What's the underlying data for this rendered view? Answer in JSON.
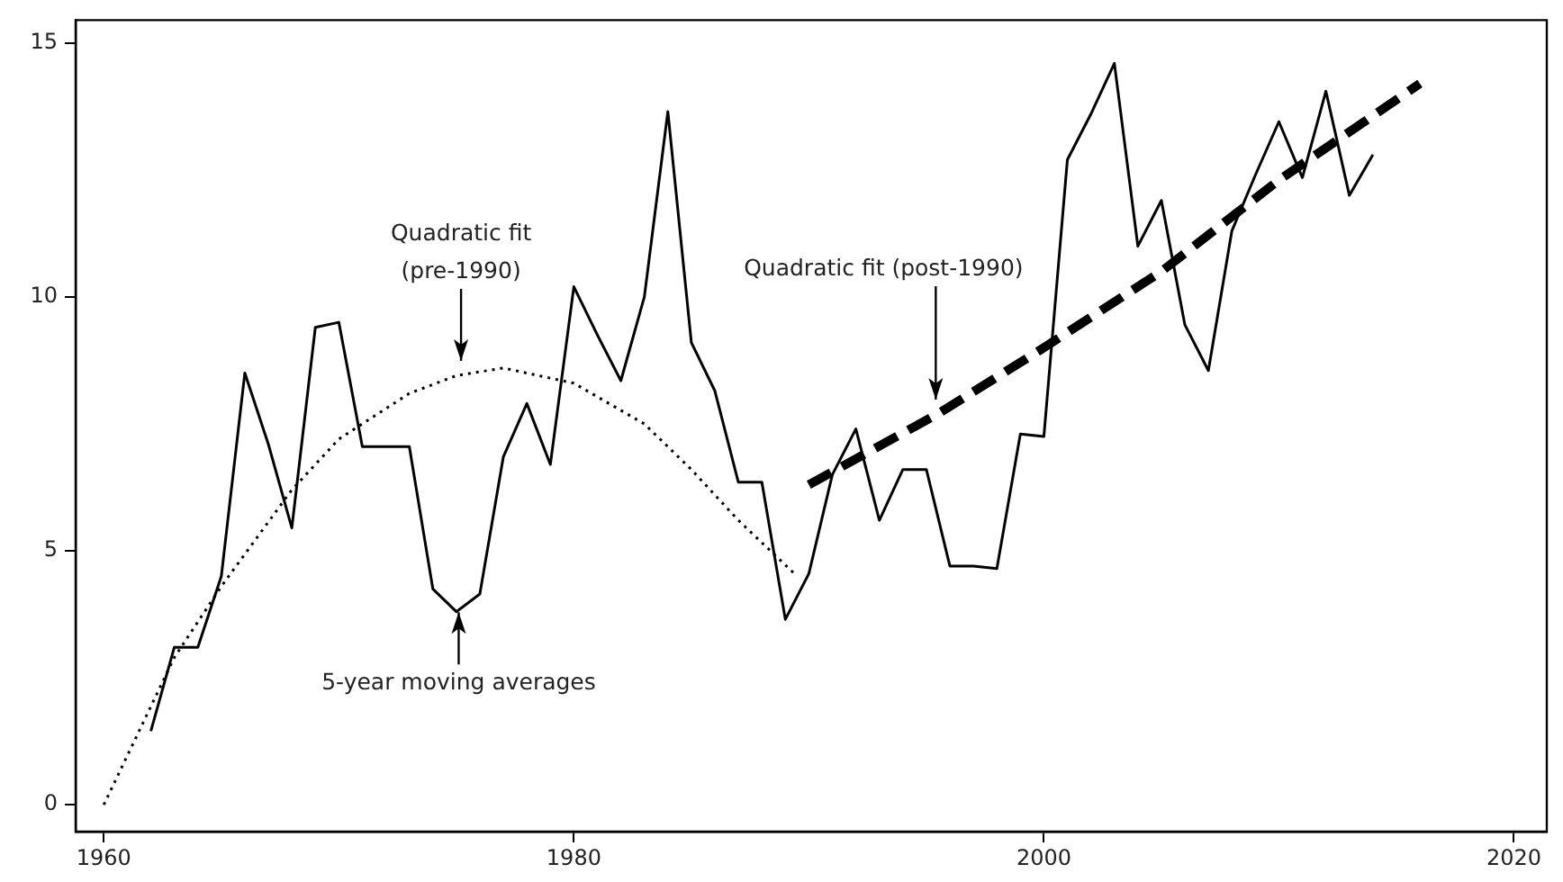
{
  "chart_data": {
    "type": "line",
    "xlim": [
      1958.8,
      2021.4
    ],
    "xticks": [
      1960,
      1980,
      2000,
      2020
    ],
    "ylim": [
      -0.53,
      15.45
    ],
    "yticks": [
      0,
      5,
      10,
      15
    ],
    "grid": false,
    "legend": false,
    "marker": "none",
    "series": [
      {
        "color": "#000000",
        "line_style": "solid",
        "x": [
          1962,
          1963,
          1964,
          1965,
          1966,
          1967,
          1968,
          1969,
          1970,
          1971,
          1972,
          1973,
          1974,
          1975,
          1976,
          1977,
          1978,
          1979,
          1980,
          1981,
          1982,
          1983,
          1984,
          1985,
          1986,
          1987,
          1988,
          1989,
          1990,
          1991,
          1992,
          1993,
          1994,
          1995,
          1996,
          1997,
          1998,
          1999,
          2000,
          2001,
          2002,
          2003,
          2004,
          2005,
          2006,
          2007,
          2008,
          2009,
          2010,
          2011,
          2012,
          2013,
          2014
        ],
        "values": [
          1.45,
          3.1,
          3.1,
          4.5,
          8.5,
          7.1,
          5.45,
          9.4,
          9.5,
          7.05,
          7.05,
          7.05,
          4.25,
          3.8,
          4.15,
          6.85,
          7.9,
          6.7,
          10.2,
          9.25,
          8.35,
          10.0,
          13.65,
          9.1,
          8.15,
          6.35,
          6.35,
          3.65,
          4.55,
          6.5,
          7.4,
          5.6,
          6.6,
          6.6,
          4.7,
          4.7,
          4.65,
          7.3,
          7.25,
          12.7,
          13.6,
          14.6,
          11.0,
          11.9,
          9.45,
          8.55,
          11.3,
          12.4,
          13.45,
          12.35,
          14.05,
          12.0,
          12.8
        ]
      },
      {
        "color": "#000000",
        "line_style": "dotted",
        "x": [
          1960,
          1963,
          1965,
          1968,
          1970,
          1973,
          1975,
          1977,
          1980,
          1983,
          1985,
          1987,
          1989.5
        ],
        "values": [
          0,
          2.9,
          4.3,
          6.2,
          7.2,
          8.1,
          8.45,
          8.6,
          8.3,
          7.5,
          6.6,
          5.6,
          4.5
        ]
      },
      {
        "color": "#000000",
        "line_style": "dashed",
        "x": [
          1990,
          1995.5,
          2000,
          2005,
          2010,
          2016
        ],
        "values": [
          6.3,
          7.7,
          9.0,
          10.5,
          12.3,
          14.2
        ]
      }
    ],
    "annotations": [
      {
        "text": "Quadratic fit\n(pre-1990)",
        "x": 1975.2,
        "y": 8.67
      },
      {
        "text": "Quadratic fit (post-1990)",
        "x": 1995.4,
        "y": 7.87
      },
      {
        "text": "5-year moving averages",
        "x": 1975.1,
        "y": 3.86
      }
    ]
  }
}
